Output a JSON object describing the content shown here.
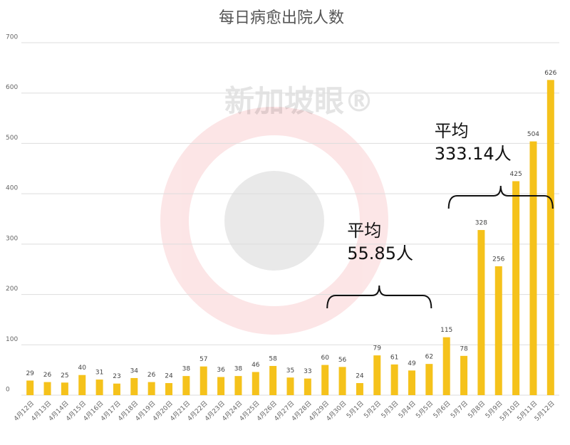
{
  "chart_data": {
    "type": "bar",
    "title": "每日病愈出院人数",
    "watermark": "新加坡眼®",
    "categories": [
      "4月12日",
      "4月13日",
      "4月14日",
      "4月15日",
      "4月16日",
      "4月17日",
      "4月18日",
      "4月19日",
      "4月20日",
      "4月21日",
      "4月22日",
      "4月23日",
      "4月24日",
      "4月25日",
      "4月26日",
      "4月27日",
      "4月28日",
      "4月29日",
      "4月30日",
      "5月1日",
      "5月2日",
      "5月3日",
      "5月4日",
      "5月5日",
      "5月6日",
      "5月7日",
      "5月8日",
      "5月9日",
      "5月10日",
      "5月11日",
      "5月12日"
    ],
    "values": [
      29,
      26,
      25,
      40,
      31,
      23,
      34,
      26,
      24,
      38,
      57,
      36,
      38,
      46,
      58,
      35,
      33,
      60,
      56,
      24,
      79,
      61,
      49,
      62,
      115,
      78,
      328,
      256,
      425,
      504,
      626
    ],
    "color": "#f5c21b",
    "ylim": [
      0,
      700
    ],
    "yticks": [
      0,
      100,
      200,
      300,
      400,
      500,
      600,
      700
    ],
    "grid": true,
    "annotations": [
      {
        "lines": [
          "平均",
          "55.85人"
        ]
      },
      {
        "lines": [
          "平均",
          "333.14人"
        ]
      }
    ]
  }
}
